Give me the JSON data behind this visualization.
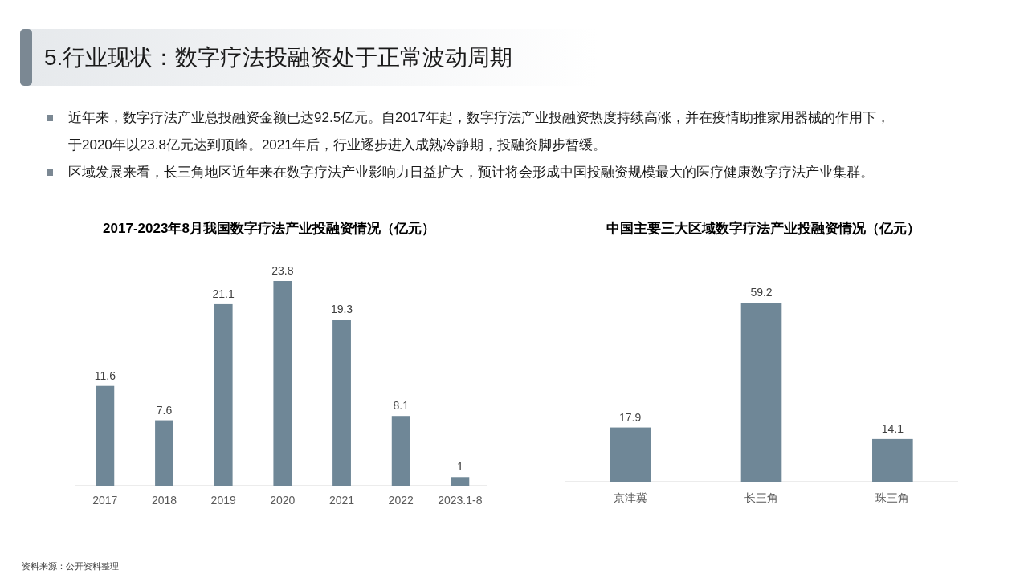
{
  "chart_data": [
    {
      "type": "other",
      "title": "5.行业现状：数字疗法投融资处于正常波动周期",
      "annotations": [
        "近年来，数字疗法产业总投融资金额已达92.5亿元。自2017年起，数字疗法产业投融资热度持续高涨，并在疫情助推家用器械的作用下，于2020年以23.8亿元达到顶峰。2021年后，行业逐步进入成熟冷静期，投融资脚步暂缓。",
        "区域发展来看，长三角地区近年来在数字疗法产业影响力日益扩大，预计将会形成中国投融资规模最大的医疗健康数字疗法产业集群。",
        "资料来源：公开资料整理"
      ]
    },
    {
      "type": "bar",
      "title": "2017-2023年8月我国数字疗法产业投融资情况（亿元）",
      "categories": [
        "2017",
        "2018",
        "2019",
        "2020",
        "2021",
        "2022",
        "2023.1-8"
      ],
      "values": [
        11.6,
        7.6,
        21.1,
        23.8,
        19.3,
        8.1,
        1
      ],
      "color": "#6f8797",
      "data_labels": true
    },
    {
      "type": "bar",
      "title": "中国主要三大区域数字疗法产业投融资情况（亿元）",
      "categories": [
        "京津冀",
        "长三角",
        "珠三角"
      ],
      "values": [
        17.9,
        59.2,
        14.1
      ],
      "color": "#6f8797",
      "data_labels": true
    }
  ]
}
